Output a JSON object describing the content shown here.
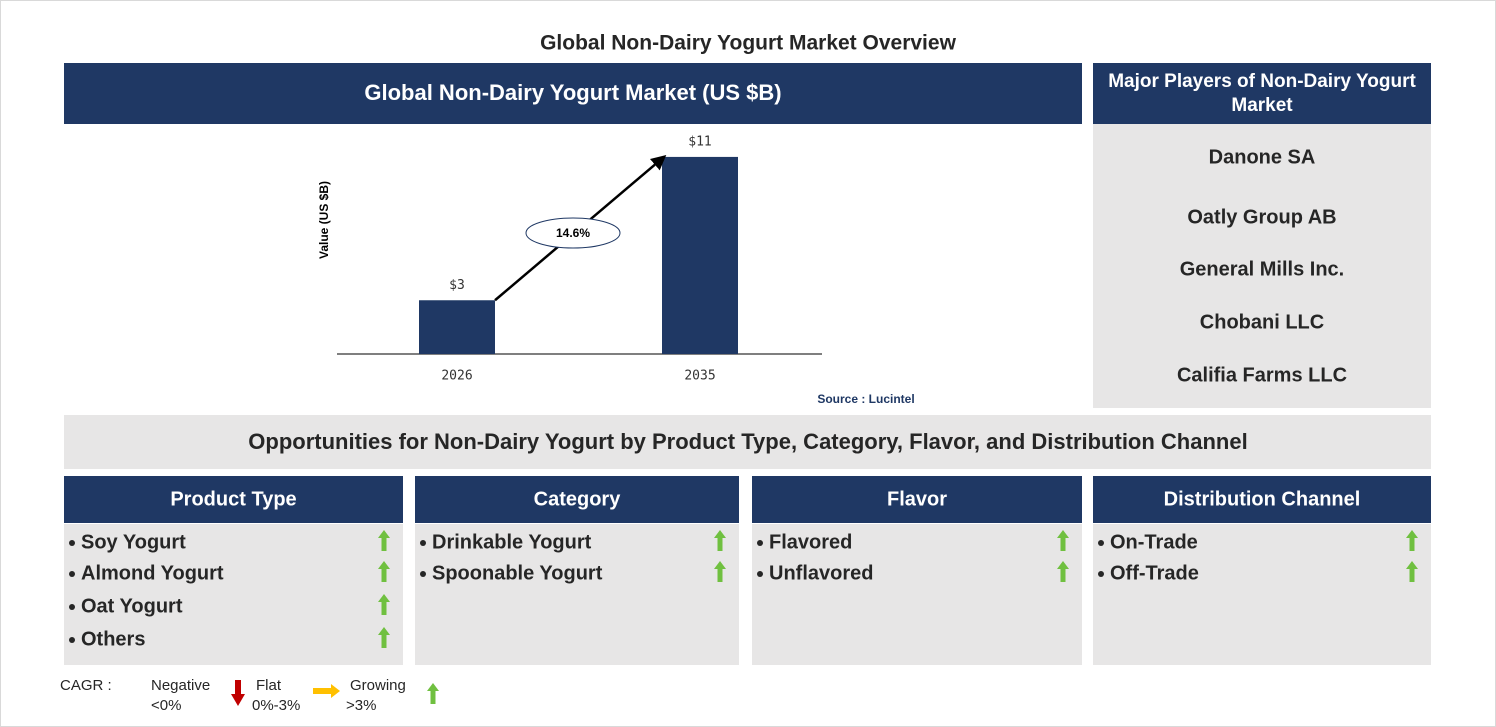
{
  "title": "Global Non-Dairy Yogurt Market Overview",
  "chart_data": {
    "type": "bar",
    "title": "Global Non-Dairy Yogurt Market (US $B)",
    "y_label": "Value (US $B)",
    "categories": [
      "2026",
      "2035"
    ],
    "values": [
      3,
      11
    ],
    "value_labels": [
      "$3",
      "$11"
    ],
    "color": "#1f3864",
    "ylim": [
      0,
      12
    ],
    "annotation": "14.6%",
    "source": "Source : Lucintel"
  },
  "players": {
    "title": "Major Players of Non-Dairy Yogurt Market",
    "items": [
      "Danone SA",
      "Oatly Group AB",
      "General Mills Inc.",
      "Chobani LLC",
      "Califia Farms LLC"
    ]
  },
  "opportunities": {
    "title": "Opportunities for Non-Dairy Yogurt by Product Type, Category, Flavor, and Distribution Channel",
    "segments": [
      {
        "name": "Product Type",
        "items": [
          "Soy Yogurt",
          "Almond Yogurt",
          "Oat Yogurt",
          "Others"
        ]
      },
      {
        "name": "Category",
        "items": [
          "Drinkable Yogurt",
          "Spoonable Yogurt"
        ]
      },
      {
        "name": "Flavor",
        "items": [
          "Flavored",
          "Unflavored"
        ]
      },
      {
        "name": "Distribution Channel",
        "items": [
          "On-Trade",
          "Off-Trade"
        ]
      }
    ]
  },
  "legend": {
    "label": "CAGR :",
    "entries": [
      {
        "name": "Negative",
        "range": "<0%"
      },
      {
        "name": "Flat",
        "range": "0%-3%"
      },
      {
        "name": "Growing",
        "range": ">3%"
      }
    ]
  }
}
